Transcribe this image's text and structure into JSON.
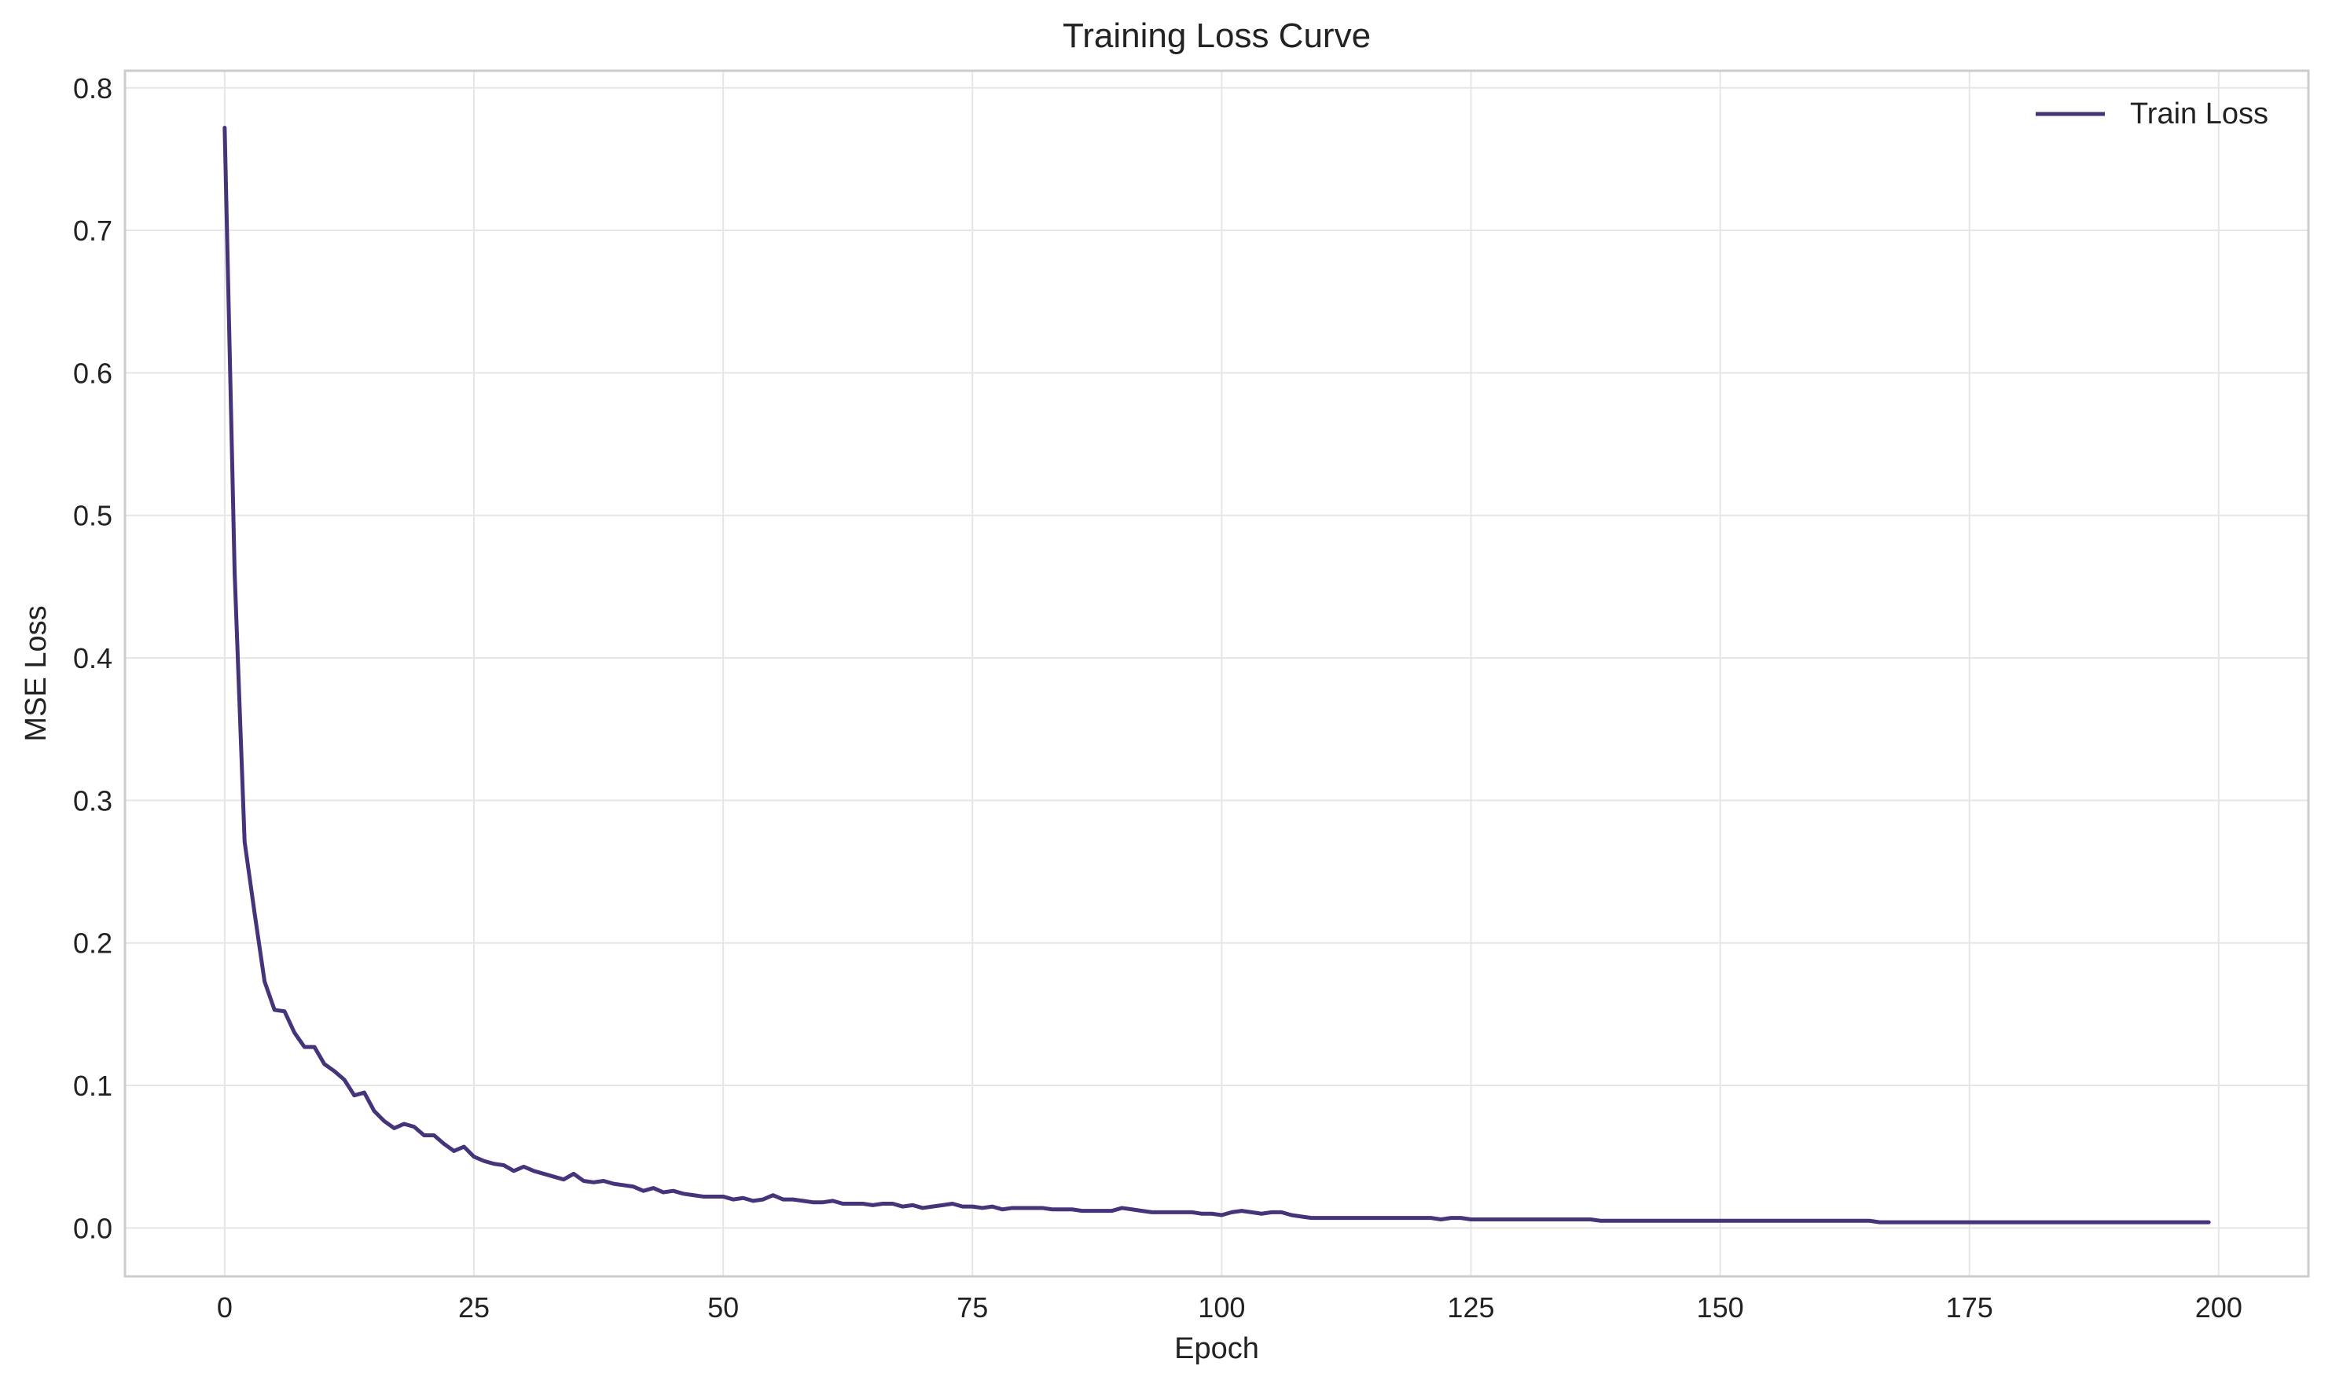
{
  "chart_data": {
    "type": "line",
    "title": "Training Loss Curve",
    "xlabel": "Epoch",
    "ylabel": "MSE Loss",
    "xlim": [
      -10,
      209
    ],
    "ylim": [
      -0.034,
      0.812
    ],
    "xticks": [
      0,
      25,
      50,
      75,
      100,
      125,
      150,
      175,
      200
    ],
    "yticks": [
      0.0,
      0.1,
      0.2,
      0.3,
      0.4,
      0.5,
      0.6,
      0.7,
      0.8
    ],
    "xtick_labels": [
      "0",
      "25",
      "50",
      "75",
      "100",
      "125",
      "150",
      "175",
      "200"
    ],
    "ytick_labels": [
      "0.0",
      "0.1",
      "0.2",
      "0.3",
      "0.4",
      "0.5",
      "0.6",
      "0.7",
      "0.8"
    ],
    "grid": true,
    "legend_position": "top-right",
    "series": [
      {
        "name": "Train Loss",
        "color": "#45347a",
        "x_start": 0,
        "x_step": 1,
        "values": [
          0.772,
          0.46,
          0.271,
          0.221,
          0.173,
          0.153,
          0.152,
          0.137,
          0.127,
          0.127,
          0.115,
          0.11,
          0.104,
          0.093,
          0.095,
          0.082,
          0.075,
          0.07,
          0.073,
          0.071,
          0.065,
          0.065,
          0.059,
          0.054,
          0.057,
          0.05,
          0.047,
          0.045,
          0.044,
          0.04,
          0.043,
          0.04,
          0.038,
          0.036,
          0.034,
          0.038,
          0.033,
          0.032,
          0.033,
          0.031,
          0.03,
          0.029,
          0.026,
          0.028,
          0.025,
          0.026,
          0.024,
          0.023,
          0.022,
          0.022,
          0.022,
          0.02,
          0.021,
          0.019,
          0.02,
          0.023,
          0.02,
          0.02,
          0.019,
          0.018,
          0.018,
          0.019,
          0.017,
          0.017,
          0.017,
          0.016,
          0.017,
          0.017,
          0.015,
          0.016,
          0.014,
          0.015,
          0.016,
          0.017,
          0.015,
          0.015,
          0.014,
          0.015,
          0.013,
          0.014,
          0.014,
          0.014,
          0.014,
          0.013,
          0.013,
          0.013,
          0.012,
          0.012,
          0.012,
          0.012,
          0.014,
          0.013,
          0.012,
          0.011,
          0.011,
          0.011,
          0.011,
          0.011,
          0.01,
          0.01,
          0.009,
          0.011,
          0.012,
          0.011,
          0.01,
          0.011,
          0.011,
          0.009,
          0.008,
          0.007,
          0.007,
          0.007,
          0.007,
          0.007,
          0.007,
          0.007,
          0.007,
          0.007,
          0.007,
          0.007,
          0.007,
          0.007,
          0.006,
          0.007,
          0.007,
          0.006,
          0.006,
          0.006,
          0.006,
          0.006,
          0.006,
          0.006,
          0.006,
          0.006,
          0.006,
          0.006,
          0.006,
          0.006,
          0.005,
          0.005,
          0.005,
          0.005,
          0.005,
          0.005,
          0.005,
          0.005,
          0.005,
          0.005,
          0.005,
          0.005,
          0.005,
          0.005,
          0.005,
          0.005,
          0.005,
          0.005,
          0.005,
          0.005,
          0.005,
          0.005,
          0.005,
          0.005,
          0.005,
          0.005,
          0.005,
          0.005,
          0.004,
          0.004,
          0.004,
          0.004,
          0.004,
          0.004,
          0.004,
          0.004,
          0.004,
          0.004,
          0.004,
          0.004,
          0.004,
          0.004,
          0.004,
          0.004,
          0.004,
          0.004,
          0.004,
          0.004,
          0.004,
          0.004,
          0.004,
          0.004,
          0.004,
          0.004,
          0.004,
          0.004,
          0.004,
          0.004,
          0.004,
          0.004,
          0.004,
          0.004
        ]
      }
    ]
  },
  "colors": {
    "grid": "#e6e6e6",
    "frame": "#cccccc",
    "text": "#222222"
  }
}
